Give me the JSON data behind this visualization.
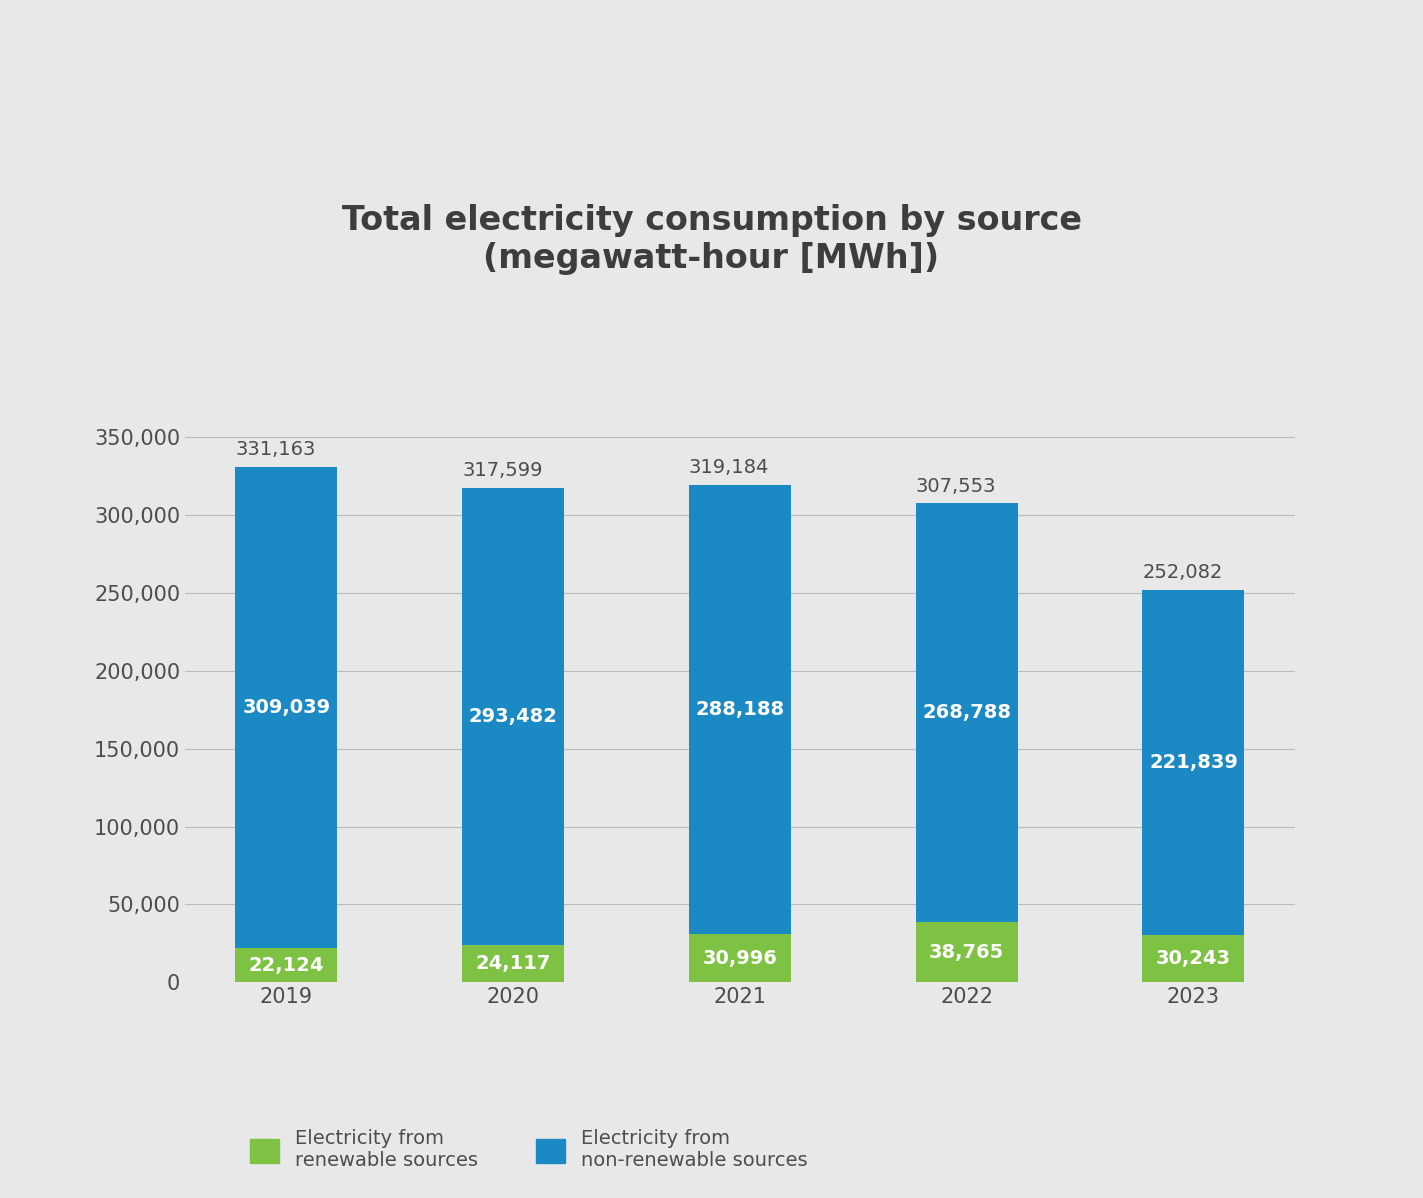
{
  "title": "Total electricity consumption by source\n(megawatt-hour [MWh])",
  "years": [
    "2019",
    "2020",
    "2021",
    "2022",
    "2023"
  ],
  "renewable": [
    22124,
    24117,
    30996,
    38765,
    30243
  ],
  "non_renewable": [
    309039,
    293482,
    288188,
    268788,
    221839
  ],
  "totals": [
    331163,
    317599,
    319184,
    307553,
    252082
  ],
  "color_renewable": "#7DC242",
  "color_non_renewable": "#1B8AC4",
  "color_background": "#E8E8E8",
  "color_title": "#3D3D3D",
  "color_axis_text": "#4D4D4D",
  "color_bar_label_white": "#FFFFFF",
  "color_total_label": "#4D4D4D",
  "ylim": [
    0,
    400000
  ],
  "yticks": [
    0,
    50000,
    100000,
    150000,
    200000,
    250000,
    300000,
    350000
  ],
  "legend_label_renewable": "Electricity from\nrenewable sources",
  "legend_label_non_renewable": "Electricity from\nnon-renewable sources",
  "title_fontsize": 24,
  "tick_fontsize": 15,
  "bar_label_fontsize": 14,
  "total_label_fontsize": 14,
  "legend_fontsize": 14,
  "bar_width": 0.45
}
